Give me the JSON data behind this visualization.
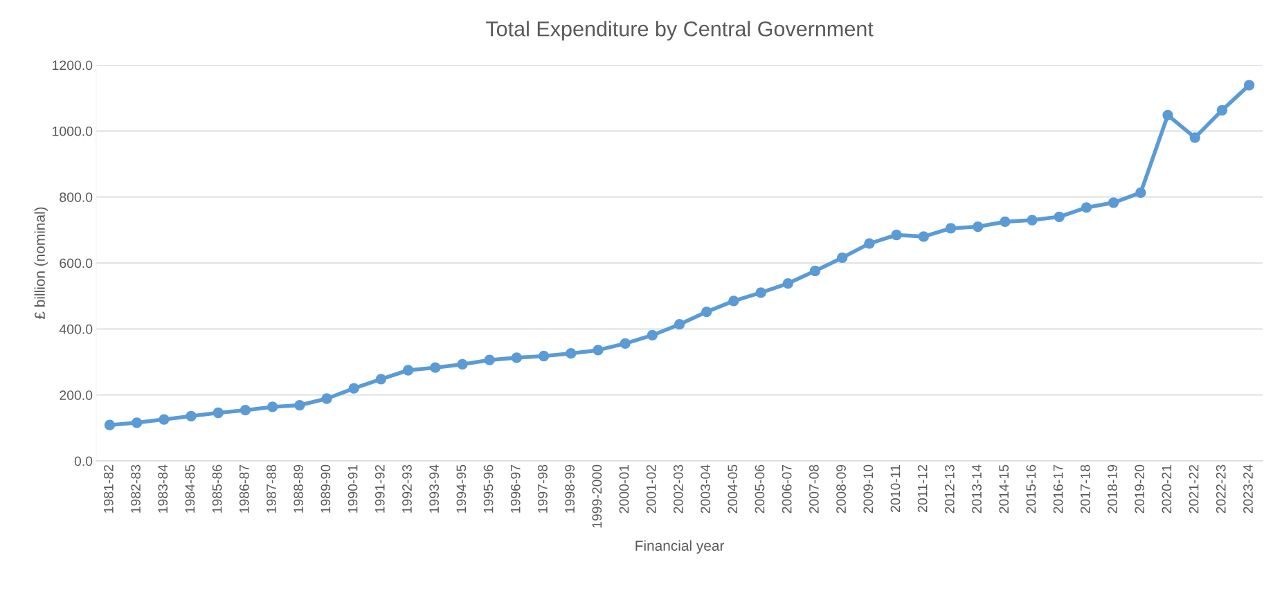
{
  "chart_data": {
    "type": "line",
    "title": "Total Expenditure by Central Government",
    "xlabel": "Financial year",
    "ylabel": "£ billion (nominal)",
    "categories": [
      "1981-82",
      "1982-83",
      "1983-84",
      "1984-85",
      "1985-86",
      "1986-87",
      "1987-88",
      "1988-89",
      "1989-90",
      "1990-91",
      "1991-92",
      "1992-93",
      "1993-94",
      "1994-95",
      "1995-96",
      "1996-97",
      "1997-98",
      "1998-99",
      "1999-2000",
      "2000-01",
      "2001-02",
      "2002-03",
      "2003-04",
      "2004-05",
      "2005-06",
      "2006-07",
      "2007-08",
      "2008-09",
      "2009-10",
      "2010-11",
      "2011-12",
      "2012-13",
      "2013-14",
      "2014-15",
      "2015-16",
      "2016-17",
      "2017-18",
      "2018-19",
      "2019-20",
      "2020-21",
      "2021-22",
      "2022-23",
      "2023-24"
    ],
    "series": [
      {
        "color": "#5b9bd5",
        "values": [
          109,
          116,
          126,
          136,
          146,
          154,
          164,
          169,
          189,
          220,
          248,
          275,
          283,
          293,
          306,
          313,
          318,
          326,
          336,
          356,
          381,
          414,
          452,
          485,
          510,
          538,
          576,
          616,
          659,
          685,
          680,
          705,
          710,
          725,
          730,
          740,
          768,
          783,
          813,
          1048,
          980,
          1063,
          1139
        ]
      }
    ],
    "ylim": [
      0,
      1200
    ],
    "yticks": [
      {
        "value": 0,
        "label": "0.0"
      },
      {
        "value": 200,
        "label": "200.0"
      },
      {
        "value": 400,
        "label": "400.0"
      },
      {
        "value": 600,
        "label": "600.0"
      },
      {
        "value": 800,
        "label": "800.0"
      },
      {
        "value": 1000,
        "label": "1000.0"
      },
      {
        "value": 1200,
        "label": "1200.0"
      }
    ],
    "grid": "y",
    "marker": "circle",
    "line_style": "solid"
  }
}
